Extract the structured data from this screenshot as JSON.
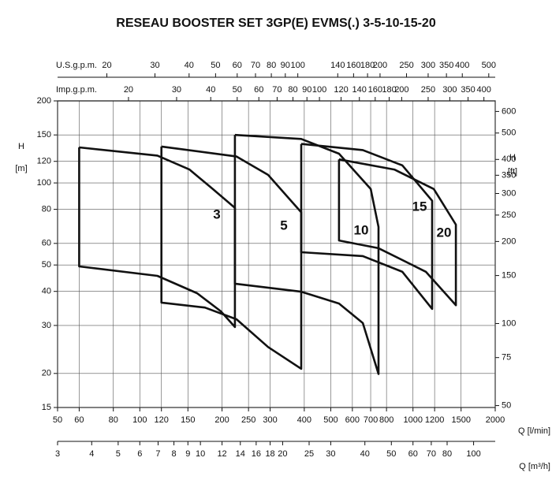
{
  "chart_data": {
    "type": "line",
    "title": "RESEAU BOOSTER SET 3GP(E) EVMS(.) 3-5-10-15-20",
    "xscale": "log",
    "yscale": "log",
    "grid": true,
    "xlabel": "Q [l/min]",
    "ylabel": "H",
    "ylabel_unit": "[m]",
    "y2label": "H",
    "y2label_unit": "[ft]",
    "xlim": [
      50,
      2000
    ],
    "xticks": [
      50,
      60,
      80,
      100,
      120,
      150,
      200,
      250,
      300,
      400,
      500,
      600,
      700,
      800,
      1000,
      1200,
      1500,
      2000
    ],
    "ylim": [
      15,
      200
    ],
    "yticks": [
      15,
      20,
      30,
      40,
      50,
      60,
      80,
      100,
      120,
      150,
      200
    ],
    "y2lim": [
      49.2,
      656
    ],
    "y2ticks": [
      50,
      75,
      100,
      150,
      200,
      250,
      300,
      350,
      400,
      500,
      600
    ],
    "extra_x_axes": [
      {
        "label": "U.S.g.p.m.",
        "position": "top",
        "lim": [
          13.2,
          528
        ],
        "ticks": [
          20,
          30,
          40,
          50,
          60,
          70,
          80,
          90,
          100,
          140,
          160,
          180,
          200,
          250,
          300,
          350,
          400,
          500
        ]
      },
      {
        "label": "Imp.g.p.m.",
        "position": "top",
        "lim": [
          11,
          440
        ],
        "ticks": [
          20,
          30,
          40,
          50,
          60,
          70,
          80,
          90,
          100,
          120,
          140,
          160,
          180,
          200,
          250,
          300,
          350,
          400
        ]
      },
      {
        "label": "Q [m³/h]",
        "position": "bottom",
        "lim": [
          3,
          120
        ],
        "ticks": [
          3,
          4,
          5,
          6,
          7,
          8,
          9,
          10,
          12,
          14,
          16,
          18,
          20,
          25,
          30,
          40,
          50,
          60,
          70,
          80,
          100
        ]
      }
    ],
    "series": [
      {
        "name": "3",
        "color": "#111111",
        "x": [
          60,
          116,
          152,
          185,
          223,
          223,
          198,
          162,
          116,
          60,
          60
        ],
        "values": [
          135,
          126,
          112,
          95,
          81,
          29.6,
          33.8,
          39.4,
          45.6,
          49.4,
          135
        ]
      },
      {
        "name": "5",
        "color": "#111111",
        "x": [
          120,
          226,
          295,
          390,
          390,
          295,
          226,
          173,
          120,
          120
        ],
        "values": [
          136,
          125,
          107,
          78,
          20.8,
          25.0,
          31.6,
          34.9,
          36.4,
          136
        ]
      },
      {
        "name": "10",
        "color": "#111111",
        "x": [
          223,
          390,
          536,
          700,
          748,
          748,
          655,
          536,
          390,
          223,
          223
        ],
        "values": [
          150,
          145,
          128,
          95,
          68.9,
          19.9,
          30.6,
          36.1,
          39.9,
          42.7,
          150
        ]
      },
      {
        "name": "15",
        "color": "#111111",
        "x": [
          390,
          655,
          914,
          1175,
          1175,
          914,
          655,
          390,
          390
        ],
        "values": [
          139,
          132,
          116,
          86,
          34.5,
          47.2,
          53.9,
          55.7,
          139
        ]
      },
      {
        "name": "20",
        "color": "#111111",
        "x": [
          536,
          855,
          1192,
          1435,
          1435,
          1114,
          748,
          536,
          536
        ],
        "values": [
          122,
          112,
          95,
          70.3,
          35.6,
          47.2,
          57.6,
          61.5,
          122
        ]
      }
    ]
  }
}
